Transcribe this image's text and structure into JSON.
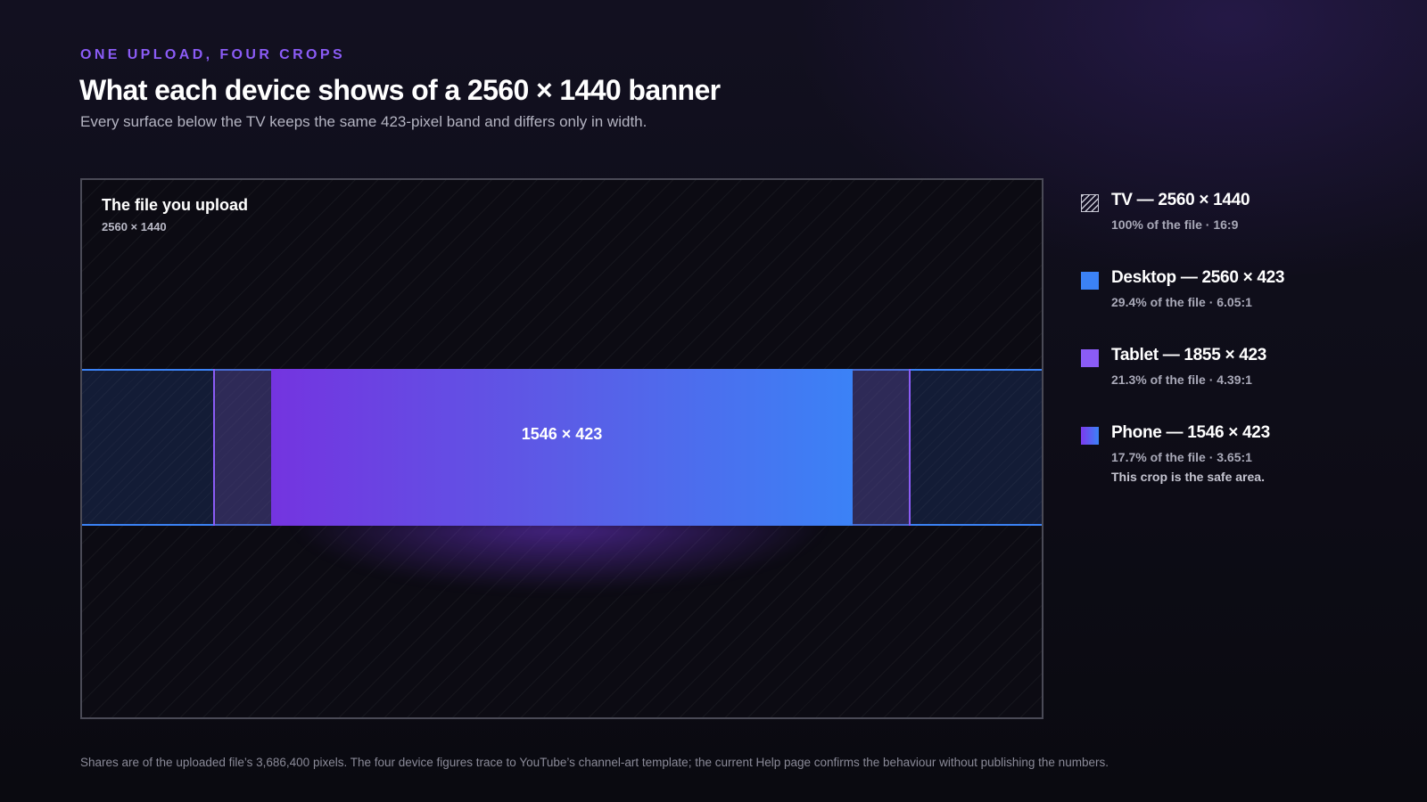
{
  "header": {
    "eyebrow": "ONE UPLOAD, FOUR CROPS",
    "title": "What each device shows of a 2560 × 1440 banner",
    "subtitle": "Every surface below the TV keeps the same 423-pixel band and differs only in width."
  },
  "diagram": {
    "file_label": "The file you upload",
    "file_dims": "2560 × 1440",
    "phone_label": "1546 × 423"
  },
  "crops": [
    {
      "name": "TV",
      "width": 2560,
      "height": 1440,
      "color": "#c8c8d4",
      "swatch": "hatched"
    },
    {
      "name": "Desktop",
      "width": 2560,
      "height": 423,
      "color": "#3b82f6"
    },
    {
      "name": "Tablet",
      "width": 1855,
      "height": 423,
      "color": "#8b5cf6"
    },
    {
      "name": "Phone",
      "width": 1546,
      "height": 423,
      "color_start": "#7c3aed",
      "color_end": "#3b82f6"
    }
  ],
  "legend": {
    "tv": {
      "title": "TV — 2560 × 1440",
      "sub": "100% of the file · 16:9"
    },
    "desktop": {
      "title": "Desktop — 2560 × 423",
      "sub": "29.4% of the file · 6.05:1"
    },
    "tablet": {
      "title": "Tablet — 1855 × 423",
      "sub": "21.3% of the file · 4.39:1"
    },
    "phone": {
      "title": "Phone — 1546 × 423",
      "sub": "17.7% of the file · 3.65:1",
      "note": "This crop is the safe area."
    }
  },
  "footnote": "Shares are of the uploaded file’s 3,686,400 pixels. The four device figures trace to YouTube’s channel-art template; the current Help page confirms the behaviour without publishing the numbers."
}
